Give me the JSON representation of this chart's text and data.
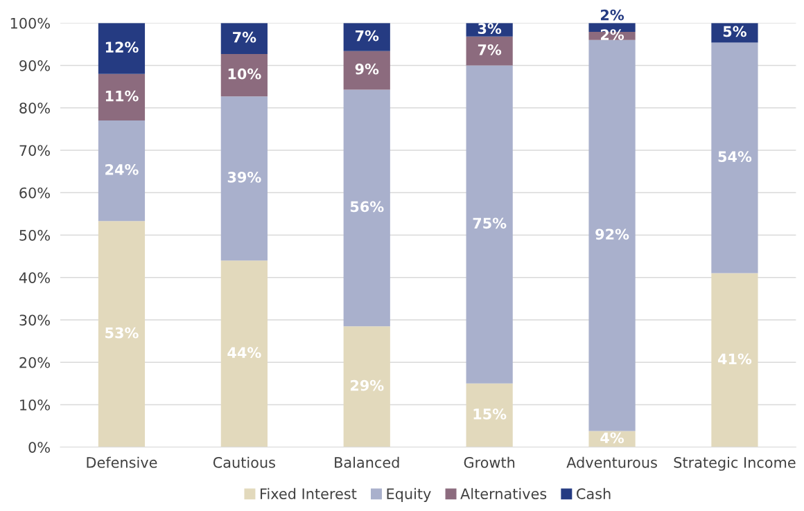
{
  "chart_data": {
    "type": "bar",
    "stacked": true,
    "categories": [
      "Defensive",
      "Cautious",
      "Balanced",
      "Growth",
      "Adventurous",
      "Strategic Income"
    ],
    "series": [
      {
        "name": "Fixed Interest",
        "color": "#e2d9bc",
        "values": [
          53.3,
          44,
          28.5,
          15,
          3.8,
          41
        ],
        "value_labels": [
          "53%",
          "44%",
          "29%",
          "15%",
          "4%",
          "41%"
        ]
      },
      {
        "name": "Equity",
        "color": "#a9b0cc",
        "values": [
          23.7,
          38.7,
          55.8,
          75,
          92.2,
          54.4
        ],
        "value_labels": [
          "24%",
          "39%",
          "56%",
          "75%",
          "92%",
          "54%"
        ]
      },
      {
        "name": "Alternatives",
        "color": "#8c6b7e",
        "values": [
          11,
          10,
          9.1,
          6.8,
          1.9,
          0
        ],
        "value_labels": [
          "11%",
          "10%",
          "9%",
          "7%",
          "2%",
          null
        ]
      },
      {
        "name": "Cash",
        "color": "#253b82",
        "values": [
          12,
          7.3,
          6.6,
          3.2,
          2.1,
          4.6
        ],
        "value_labels": [
          "12%",
          "7%",
          "7%",
          "3%",
          "2%",
          "5%"
        ]
      }
    ],
    "ylim": [
      0,
      100
    ],
    "yticks": [
      {
        "value": 0,
        "label": "0%"
      },
      {
        "value": 10,
        "label": "10%"
      },
      {
        "value": 20,
        "label": "20%"
      },
      {
        "value": 30,
        "label": "30%"
      },
      {
        "value": 40,
        "label": "40%"
      },
      {
        "value": 50,
        "label": "50%"
      },
      {
        "value": 60,
        "label": "60%"
      },
      {
        "value": 70,
        "label": "70%"
      },
      {
        "value": 80,
        "label": "80%"
      },
      {
        "value": 90,
        "label": "90%"
      },
      {
        "value": 100,
        "label": "100%"
      }
    ],
    "grid": "y",
    "legend": "bottom"
  }
}
